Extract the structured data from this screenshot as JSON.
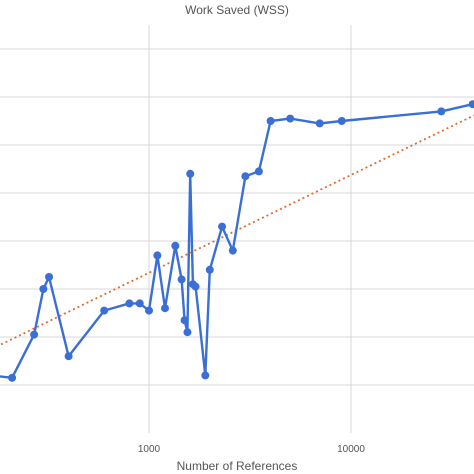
{
  "chart_data": {
    "type": "line",
    "title": "Work Saved (WSS)",
    "xlabel": "Number of References",
    "ylabel": "",
    "x_scale": "log",
    "xlim": [
      100,
      50000
    ],
    "ylim": [
      0,
      8.5
    ],
    "grid": true,
    "x_ticks": [
      {
        "value": 1000,
        "label": "1000"
      },
      {
        "value": 10000,
        "label": "10000"
      }
    ],
    "y_gridlines": [
      1,
      2,
      3,
      4,
      5,
      6,
      7,
      8
    ],
    "colors": {
      "series": "#3a6fd6",
      "trendline": "#e36b2c",
      "grid": "#d9d9d9",
      "text": "#555555"
    },
    "series": [
      {
        "type": "line-markers",
        "x": [
          100,
          210,
          270,
          300,
          320,
          400,
          600,
          800,
          900,
          1000,
          1100,
          1200,
          1350,
          1450,
          1500,
          1550,
          1600,
          1650,
          1700,
          1900,
          2000,
          2300,
          2600,
          3000,
          3500,
          4000,
          5000,
          7000,
          9000,
          28000,
          40000
        ],
        "y": [
          1.3,
          1.15,
          2.05,
          3.0,
          3.25,
          1.6,
          2.55,
          2.7,
          2.7,
          2.55,
          3.7,
          2.6,
          3.9,
          3.2,
          2.35,
          2.1,
          5.4,
          3.1,
          3.05,
          1.2,
          3.4,
          4.3,
          3.8,
          5.35,
          5.45,
          6.5,
          6.55,
          6.45,
          6.5,
          6.7,
          6.85
        ]
      },
      {
        "type": "trendline",
        "x": [
          100,
          50000
        ],
        "y": [
          1.3,
          6.8
        ]
      }
    ]
  }
}
